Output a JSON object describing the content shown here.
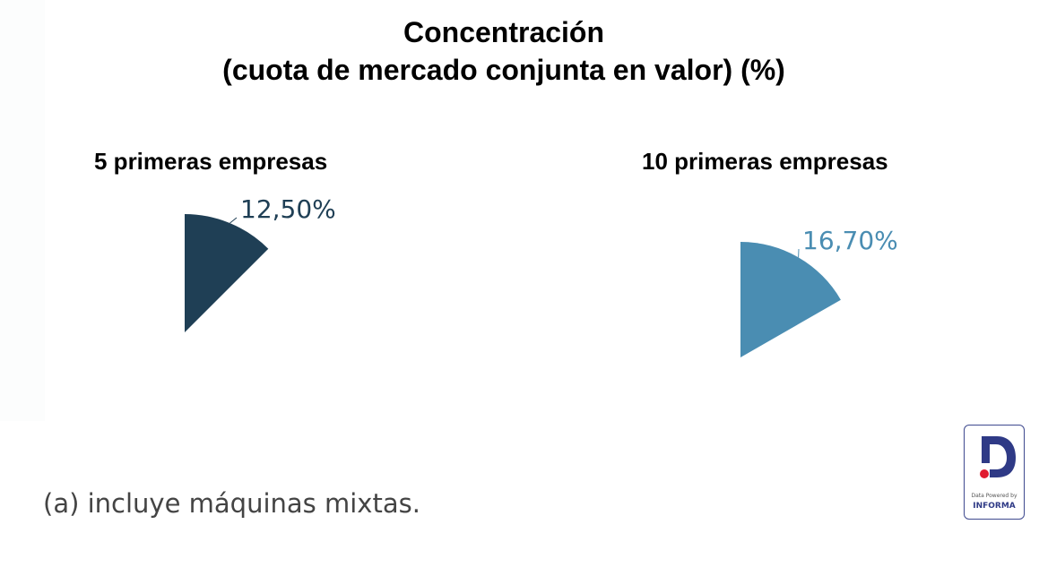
{
  "title": {
    "line1": "Concentración",
    "line2": "(cuota de mercado conjunta en valor) (%)"
  },
  "charts": [
    {
      "label": "5 primeras empresas",
      "value_label": "12,50%",
      "value": 12.5,
      "color": "#1f3f55"
    },
    {
      "label": "10 primeras empresas",
      "value_label": "16,70%",
      "value": 16.7,
      "color": "#4a8db2"
    }
  ],
  "footnote": "(a) incluye máquinas mixtas.",
  "logo": {
    "small_text": "Data Powered by",
    "brand": "INFORMA",
    "primary_color": "#2f3a86",
    "dot_color": "#e01b2f"
  },
  "chart_data": [
    {
      "type": "pie",
      "title": "5 primeras empresas",
      "categories": [
        "5 primeras empresas"
      ],
      "values": [
        12.5
      ],
      "labels": [
        "12,50%"
      ],
      "unit": "%",
      "color": "#1f3f55"
    },
    {
      "type": "pie",
      "title": "10 primeras empresas",
      "categories": [
        "10 primeras empresas"
      ],
      "values": [
        16.7
      ],
      "labels": [
        "16,70%"
      ],
      "unit": "%",
      "color": "#4a8db2"
    }
  ]
}
